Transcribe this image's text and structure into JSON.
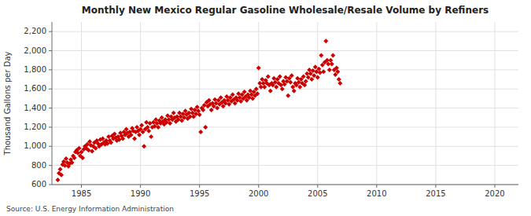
{
  "chart_data": {
    "type": "scatter",
    "title": "Monthly New Mexico Regular Gasoline Wholesale/Resale Volume by Refiners",
    "y_label": "Thousand Gallons per Day",
    "annotations": [
      "Source: U.S. Energy Information Administration"
    ],
    "color": "#CC0000",
    "marker": "diamond",
    "grid": true,
    "xlim": [
      1982.5,
      2022
    ],
    "ylim": [
      600,
      2300
    ],
    "xticks": [
      1985,
      1990,
      1995,
      2000,
      2005,
      2010,
      2015,
      2020
    ],
    "yticks": [
      600,
      800,
      {
        "value": 1000,
        "label": "1,000"
      },
      {
        "value": 1200,
        "label": "1,200"
      },
      {
        "value": 1400,
        "label": "1,400"
      },
      {
        "value": 1600,
        "label": "1,600"
      },
      {
        "value": 1800,
        "label": "1,800"
      },
      {
        "value": 2000,
        "label": "2,000"
      },
      {
        "value": 2200,
        "label": "2,200"
      }
    ],
    "x": [
      1983.0,
      1983.1,
      1983.2,
      1983.3,
      1983.4,
      1983.5,
      1983.6,
      1983.7,
      1983.8,
      1983.9,
      1984.0,
      1984.1,
      1984.2,
      1984.3,
      1984.4,
      1984.5,
      1984.6,
      1984.7,
      1984.8,
      1984.9,
      1985.0,
      1985.1,
      1985.2,
      1985.3,
      1985.4,
      1985.5,
      1985.6,
      1985.7,
      1985.8,
      1985.9,
      1986.0,
      1986.1,
      1986.2,
      1986.3,
      1986.4,
      1986.5,
      1986.6,
      1986.7,
      1986.8,
      1986.9,
      1987.0,
      1987.1,
      1987.2,
      1987.3,
      1987.4,
      1987.5,
      1987.6,
      1987.7,
      1987.8,
      1987.9,
      1988.0,
      1988.1,
      1988.2,
      1988.3,
      1988.4,
      1988.5,
      1988.6,
      1988.7,
      1988.8,
      1988.9,
      1989.0,
      1989.1,
      1989.2,
      1989.3,
      1989.4,
      1989.5,
      1989.6,
      1989.7,
      1989.8,
      1989.9,
      1990.0,
      1990.1,
      1990.2,
      1990.3,
      1990.4,
      1990.5,
      1990.6,
      1990.7,
      1990.8,
      1990.9,
      1991.0,
      1991.1,
      1991.2,
      1991.3,
      1991.4,
      1991.5,
      1991.6,
      1991.7,
      1991.8,
      1991.9,
      1992.0,
      1992.1,
      1992.2,
      1992.3,
      1992.4,
      1992.5,
      1992.6,
      1992.7,
      1992.8,
      1992.9,
      1993.0,
      1993.1,
      1993.2,
      1993.3,
      1993.4,
      1993.5,
      1993.6,
      1993.7,
      1993.8,
      1993.9,
      1994.0,
      1994.1,
      1994.2,
      1994.3,
      1994.4,
      1994.5,
      1994.6,
      1994.7,
      1994.8,
      1994.9,
      1995.0,
      1995.1,
      1995.2,
      1995.3,
      1995.4,
      1995.5,
      1995.6,
      1995.7,
      1995.8,
      1995.9,
      1996.0,
      1996.1,
      1996.2,
      1996.3,
      1996.4,
      1996.5,
      1996.6,
      1996.7,
      1996.8,
      1996.9,
      1997.0,
      1997.1,
      1997.2,
      1997.3,
      1997.4,
      1997.5,
      1997.6,
      1997.7,
      1997.8,
      1997.9,
      1998.0,
      1998.1,
      1998.2,
      1998.3,
      1998.4,
      1998.5,
      1998.6,
      1998.7,
      1998.8,
      1998.9,
      1999.0,
      1999.1,
      1999.2,
      1999.3,
      1999.4,
      1999.5,
      1999.6,
      1999.7,
      1999.8,
      1999.9,
      2000.0,
      2000.1,
      2000.2,
      2000.3,
      2000.4,
      2000.5,
      2000.6,
      2000.7,
      2000.8,
      2000.9,
      2001.0,
      2001.1,
      2001.2,
      2001.3,
      2001.4,
      2001.5,
      2001.6,
      2001.7,
      2001.8,
      2001.9,
      2002.0,
      2002.1,
      2002.2,
      2002.3,
      2002.4,
      2002.5,
      2002.6,
      2002.7,
      2002.8,
      2002.9,
      2003.0,
      2003.1,
      2003.2,
      2003.3,
      2003.4,
      2003.5,
      2003.6,
      2003.7,
      2003.8,
      2003.9,
      2004.0,
      2004.1,
      2004.2,
      2004.3,
      2004.4,
      2004.5,
      2004.6,
      2004.7,
      2004.8,
      2004.9,
      2005.0,
      2005.1,
      2005.2,
      2005.3,
      2005.4,
      2005.5,
      2005.6,
      2005.7,
      2005.8,
      2005.9,
      2006.0,
      2006.1,
      2006.2,
      2006.3,
      2006.4,
      2006.5,
      2006.6,
      2006.7,
      2006.8,
      2006.9
    ],
    "values": [
      650,
      720,
      760,
      700,
      810,
      840,
      800,
      870,
      830,
      790,
      820,
      860,
      830,
      900,
      880,
      940,
      960,
      930,
      980,
      900,
      940,
      880,
      970,
      1000,
      980,
      1020,
      960,
      1050,
      1010,
      950,
      1000,
      1040,
      980,
      1060,
      1030,
      1000,
      1070,
      1020,
      1080,
      1040,
      1020,
      1060,
      1030,
      1100,
      1060,
      1040,
      1110,
      1080,
      1130,
      1090,
      1060,
      1100,
      1070,
      1140,
      1110,
      1080,
      1150,
      1120,
      1180,
      1140,
      1100,
      1150,
      1120,
      1190,
      1160,
      1080,
      1150,
      1200,
      1160,
      1120,
      1180,
      1220,
      1150,
      1000,
      1180,
      1250,
      1200,
      1160,
      1240,
      1100,
      1200,
      1250,
      1210,
      1280,
      1240,
      1200,
      1270,
      1240,
      1300,
      1260,
      1230,
      1280,
      1250,
      1320,
      1280,
      1240,
      1310,
      1280,
      1350,
      1300,
      1260,
      1310,
      1280,
      1350,
      1310,
      1270,
      1340,
      1300,
      1370,
      1330,
      1290,
      1350,
      1310,
      1390,
      1350,
      1310,
      1380,
      1340,
      1410,
      1370,
      1330,
      1150,
      1400,
      1380,
      1430,
      1200,
      1460,
      1420,
      1480,
      1440,
      1380,
      1450,
      1420,
      1490,
      1450,
      1400,
      1480,
      1440,
      1510,
      1460,
      1420,
      1480,
      1450,
      1520,
      1480,
      1440,
      1510,
      1470,
      1540,
      1490,
      1450,
      1510,
      1480,
      1550,
      1510,
      1470,
      1540,
      1500,
      1570,
      1520,
      1480,
      1540,
      1510,
      1580,
      1540,
      1500,
      1570,
      1530,
      1600,
      1550,
      1820,
      1660,
      1620,
      1700,
      1660,
      1620,
      1690,
      1660,
      1730,
      1640,
      1580,
      1660,
      1640,
      1710,
      1670,
      1620,
      1700,
      1660,
      1730,
      1640,
      1600,
      1680,
      1650,
      1720,
      1680,
      1530,
      1710,
      1670,
      1740,
      1620,
      1580,
      1660,
      1640,
      1710,
      1670,
      1620,
      1700,
      1660,
      1730,
      1640,
      1680,
      1760,
      1720,
      1800,
      1760,
      1700,
      1790,
      1740,
      1830,
      1780,
      1720,
      1810,
      1770,
      1950,
      1850,
      1780,
      1880,
      2100,
      1900,
      1860,
      1800,
      1900,
      1860,
      1950,
      1800,
      1750,
      1820,
      1780,
      1700,
      1660
    ]
  }
}
